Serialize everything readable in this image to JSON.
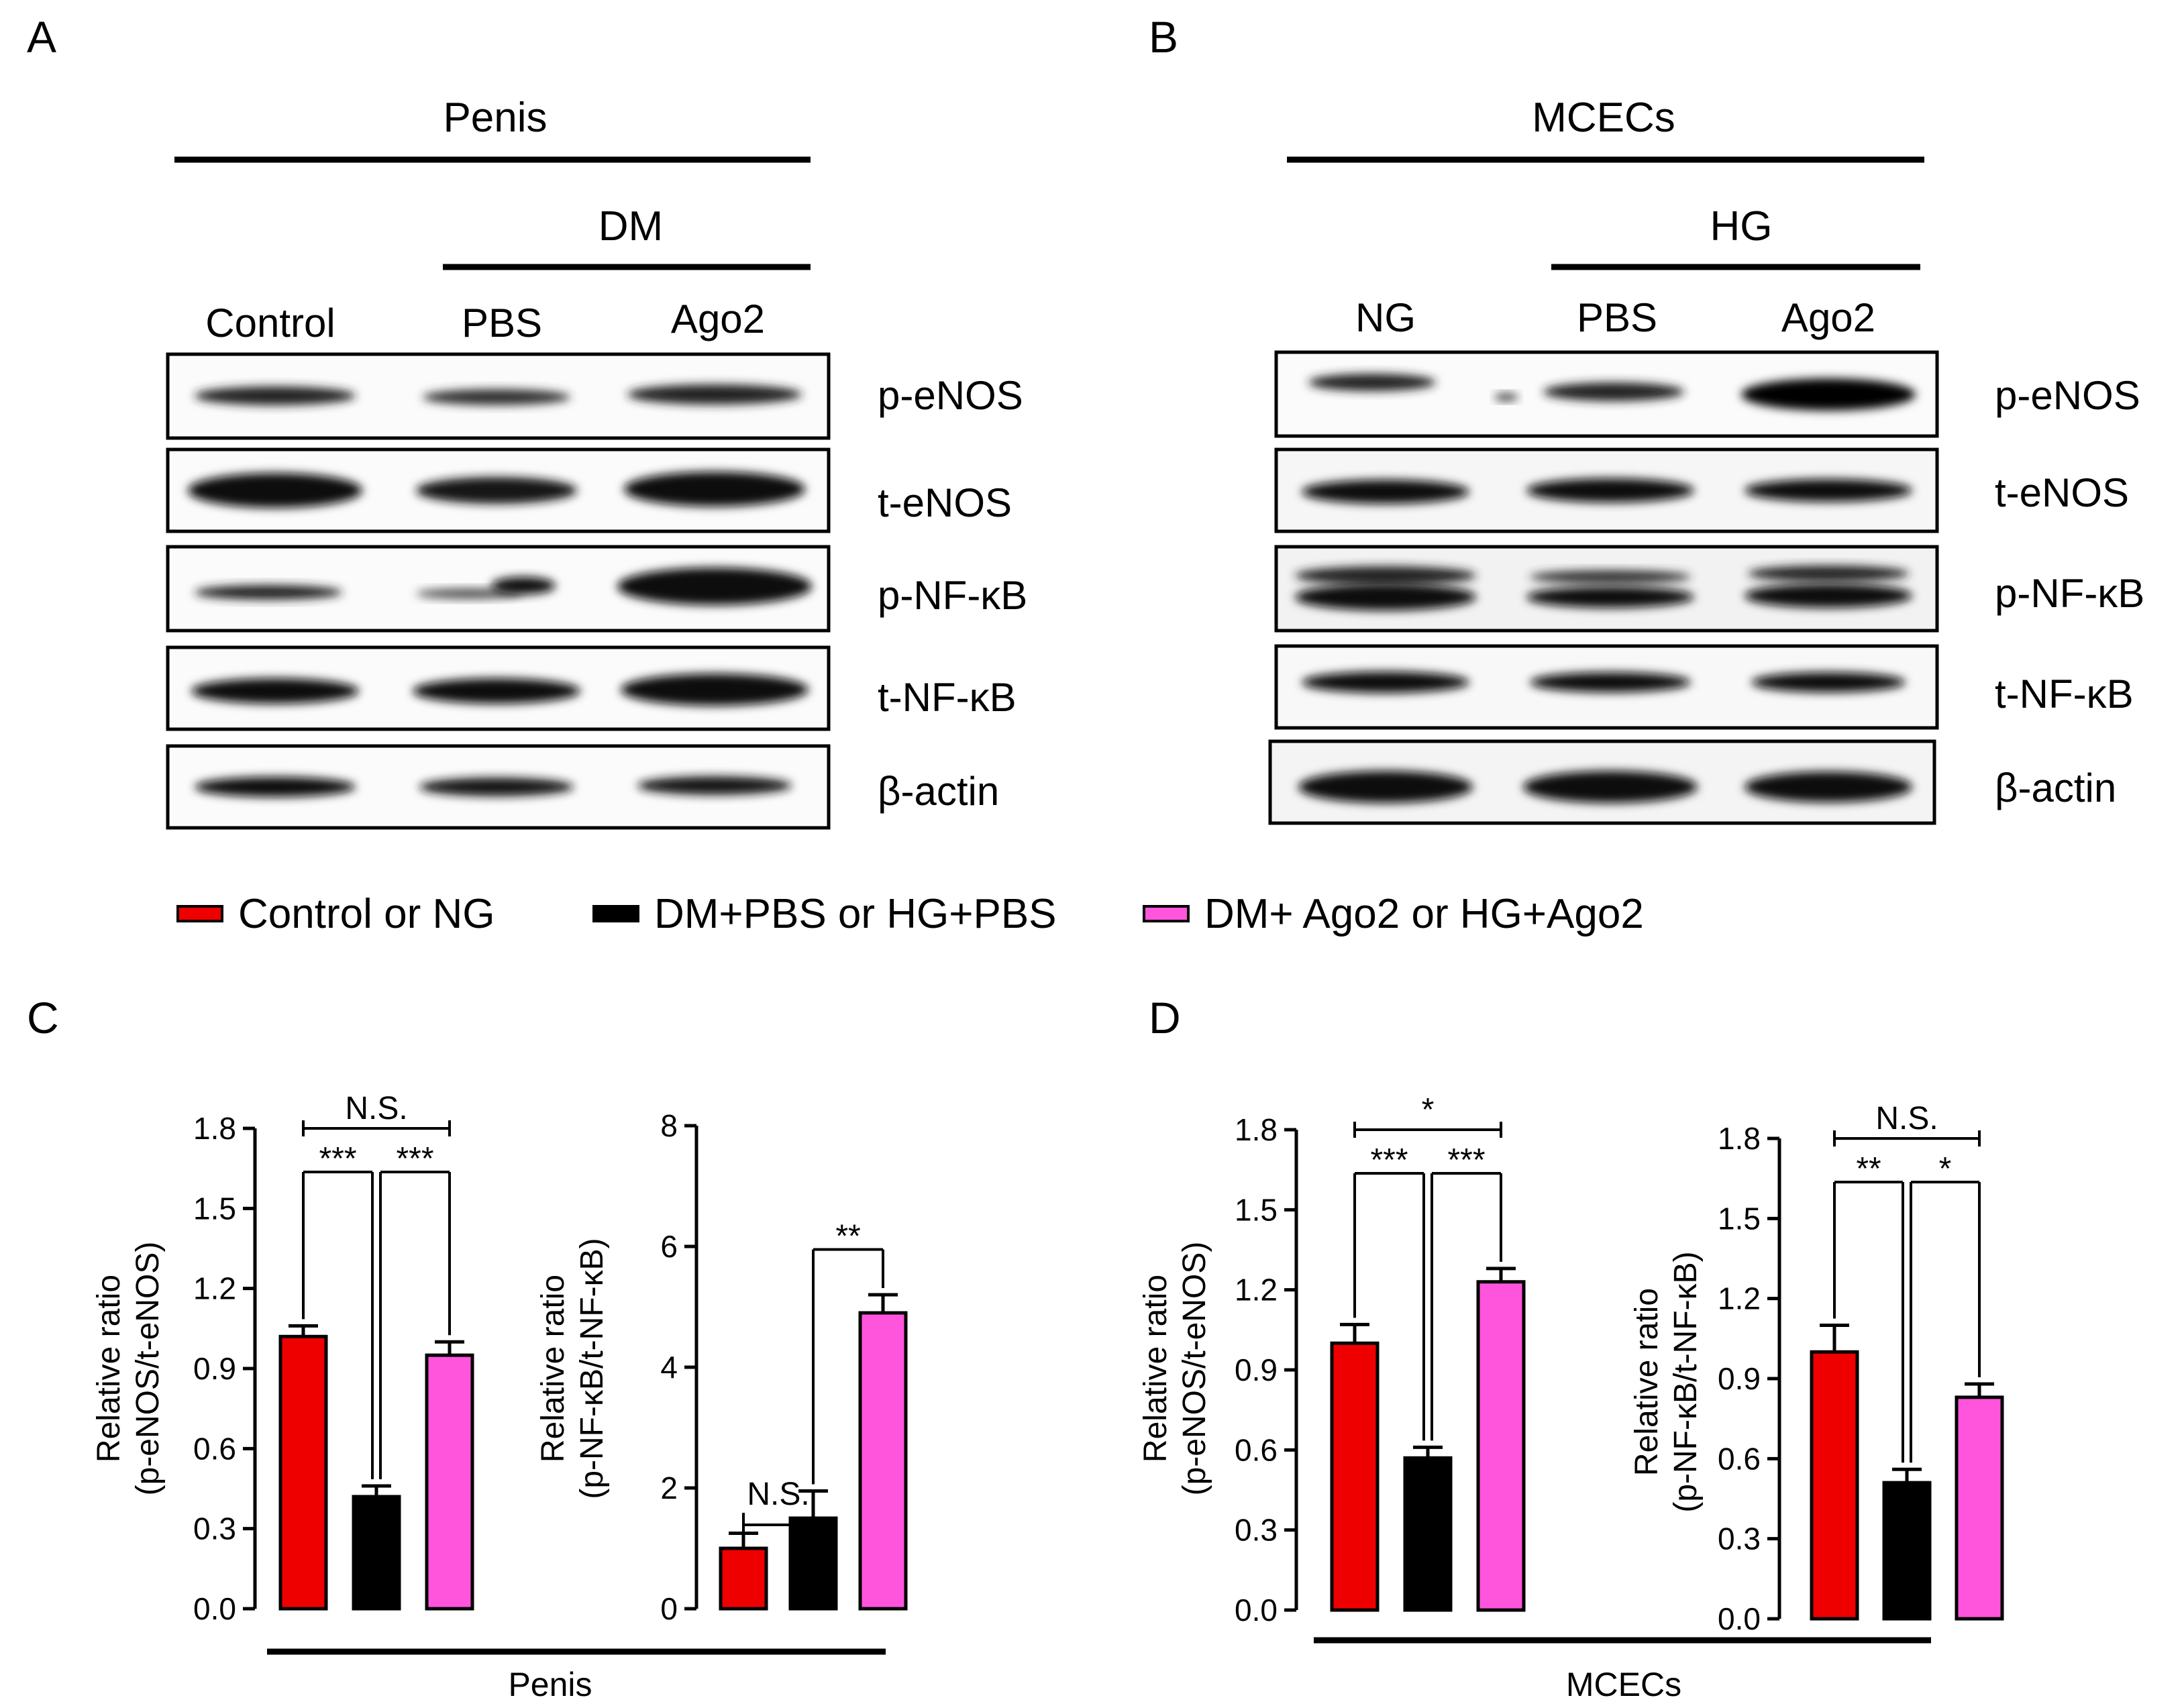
{
  "panels": {
    "A": {
      "letter": "A",
      "tissue": "Penis",
      "group_label": "DM",
      "columns": [
        "Control",
        "PBS",
        "Ago2"
      ],
      "rows": [
        "p-eNOS",
        "t-eNOS",
        "p-NF-κB",
        "t-NF-κB",
        "β-actin"
      ]
    },
    "B": {
      "letter": "B",
      "tissue": "MCECs",
      "group_label": "HG",
      "columns": [
        "NG",
        "PBS",
        "Ago2"
      ],
      "rows": [
        "p-eNOS",
        "t-eNOS",
        "p-NF-κB",
        "t-NF-κB",
        "β-actin"
      ]
    },
    "C": {
      "letter": "C",
      "xlabel": "Penis"
    },
    "D": {
      "letter": "D",
      "xlabel": "MCECs"
    }
  },
  "legend": {
    "items": [
      {
        "label": "Control or NG",
        "color": "#ee0000"
      },
      {
        "label": "DM+PBS or HG+PBS",
        "color": "#000000"
      },
      {
        "label": "DM+ Ago2 or HG+Ago2",
        "color": "#ff55dd"
      }
    ]
  },
  "chart_data": [
    {
      "id": "C1",
      "type": "bar",
      "categories": [
        "Control",
        "DM+PBS",
        "DM+Ago2"
      ],
      "values": [
        1.02,
        0.42,
        0.95
      ],
      "errors": [
        0.04,
        0.04,
        0.05
      ],
      "colors": [
        "#ee0000",
        "#000000",
        "#ff55dd"
      ],
      "ylim": [
        0,
        1.8
      ],
      "yticks": [
        "0.0",
        "0.3",
        "0.6",
        "0.9",
        "1.2",
        "1.5",
        "1.8"
      ],
      "ylabel_line1": "Relative ratio",
      "ylabel_line2": "(p-eNOS/t-eNOS)",
      "comparisons": [
        {
          "from": 0,
          "to": 2,
          "label": "N.S."
        },
        {
          "from": 0,
          "to": 1,
          "label": "***"
        },
        {
          "from": 1,
          "to": 2,
          "label": "***"
        }
      ]
    },
    {
      "id": "C2",
      "type": "bar",
      "categories": [
        "Control",
        "DM+PBS",
        "DM+Ago2"
      ],
      "values": [
        1.0,
        1.5,
        4.9
      ],
      "errors": [
        0.25,
        0.45,
        0.3
      ],
      "colors": [
        "#ee0000",
        "#000000",
        "#ff55dd"
      ],
      "ylim": [
        0,
        8
      ],
      "yticks": [
        "0",
        "2",
        "4",
        "6",
        "8"
      ],
      "ylabel_line1": "Relative ratio",
      "ylabel_line2": "(p-NF-κB/t-NF-κB)",
      "comparisons": [
        {
          "from": 0,
          "to": 1,
          "label": "N.S."
        },
        {
          "from": 1,
          "to": 2,
          "label": "**"
        }
      ]
    },
    {
      "id": "D1",
      "type": "bar",
      "categories": [
        "NG",
        "HG+PBS",
        "HG+Ago2"
      ],
      "values": [
        1.0,
        0.57,
        1.23
      ],
      "errors": [
        0.07,
        0.04,
        0.05
      ],
      "colors": [
        "#ee0000",
        "#000000",
        "#ff55dd"
      ],
      "ylim": [
        0,
        1.8
      ],
      "yticks": [
        "0.0",
        "0.3",
        "0.6",
        "0.9",
        "1.2",
        "1.5",
        "1.8"
      ],
      "ylabel_line1": "Relative ratio",
      "ylabel_line2": "(p-eNOS/t-eNOS)",
      "comparisons": [
        {
          "from": 0,
          "to": 2,
          "label": "*"
        },
        {
          "from": 0,
          "to": 1,
          "label": "***"
        },
        {
          "from": 1,
          "to": 2,
          "label": "***"
        }
      ]
    },
    {
      "id": "D2",
      "type": "bar",
      "categories": [
        "NG",
        "HG+PBS",
        "HG+Ago2"
      ],
      "values": [
        1.0,
        0.51,
        0.83
      ],
      "errors": [
        0.1,
        0.05,
        0.05
      ],
      "colors": [
        "#ee0000",
        "#000000",
        "#ff55dd"
      ],
      "ylim": [
        0,
        1.8
      ],
      "yticks": [
        "0.0",
        "0.3",
        "0.6",
        "0.9",
        "1.2",
        "1.5",
        "1.8"
      ],
      "ylabel_line1": "Relative ratio",
      "ylabel_line2": "(p-NF-κB/t-NF-κB)",
      "comparisons": [
        {
          "from": 0,
          "to": 2,
          "label": "N.S."
        },
        {
          "from": 0,
          "to": 1,
          "label": "**"
        },
        {
          "from": 1,
          "to": 2,
          "label": "*"
        }
      ]
    }
  ]
}
